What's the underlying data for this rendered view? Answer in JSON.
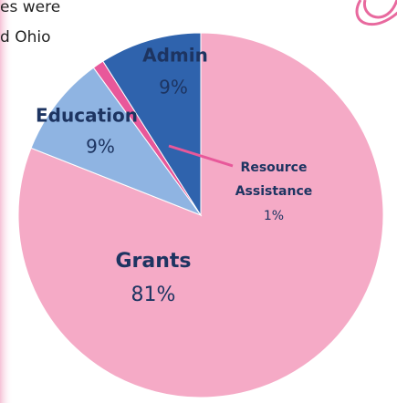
{
  "document_text": [
    "es were",
    "d Ohio"
  ],
  "chart_data": {
    "type": "pie",
    "categories": [
      "Grants",
      "Education",
      "Resource Assistance",
      "Admin"
    ],
    "values": [
      81,
      9,
      1,
      9
    ],
    "value_labels": [
      "81%",
      "9%",
      "1%",
      "9%"
    ],
    "colors": [
      "#f5aac6",
      "#8fb4e2",
      "#e8589a",
      "#2f63ad"
    ]
  }
}
